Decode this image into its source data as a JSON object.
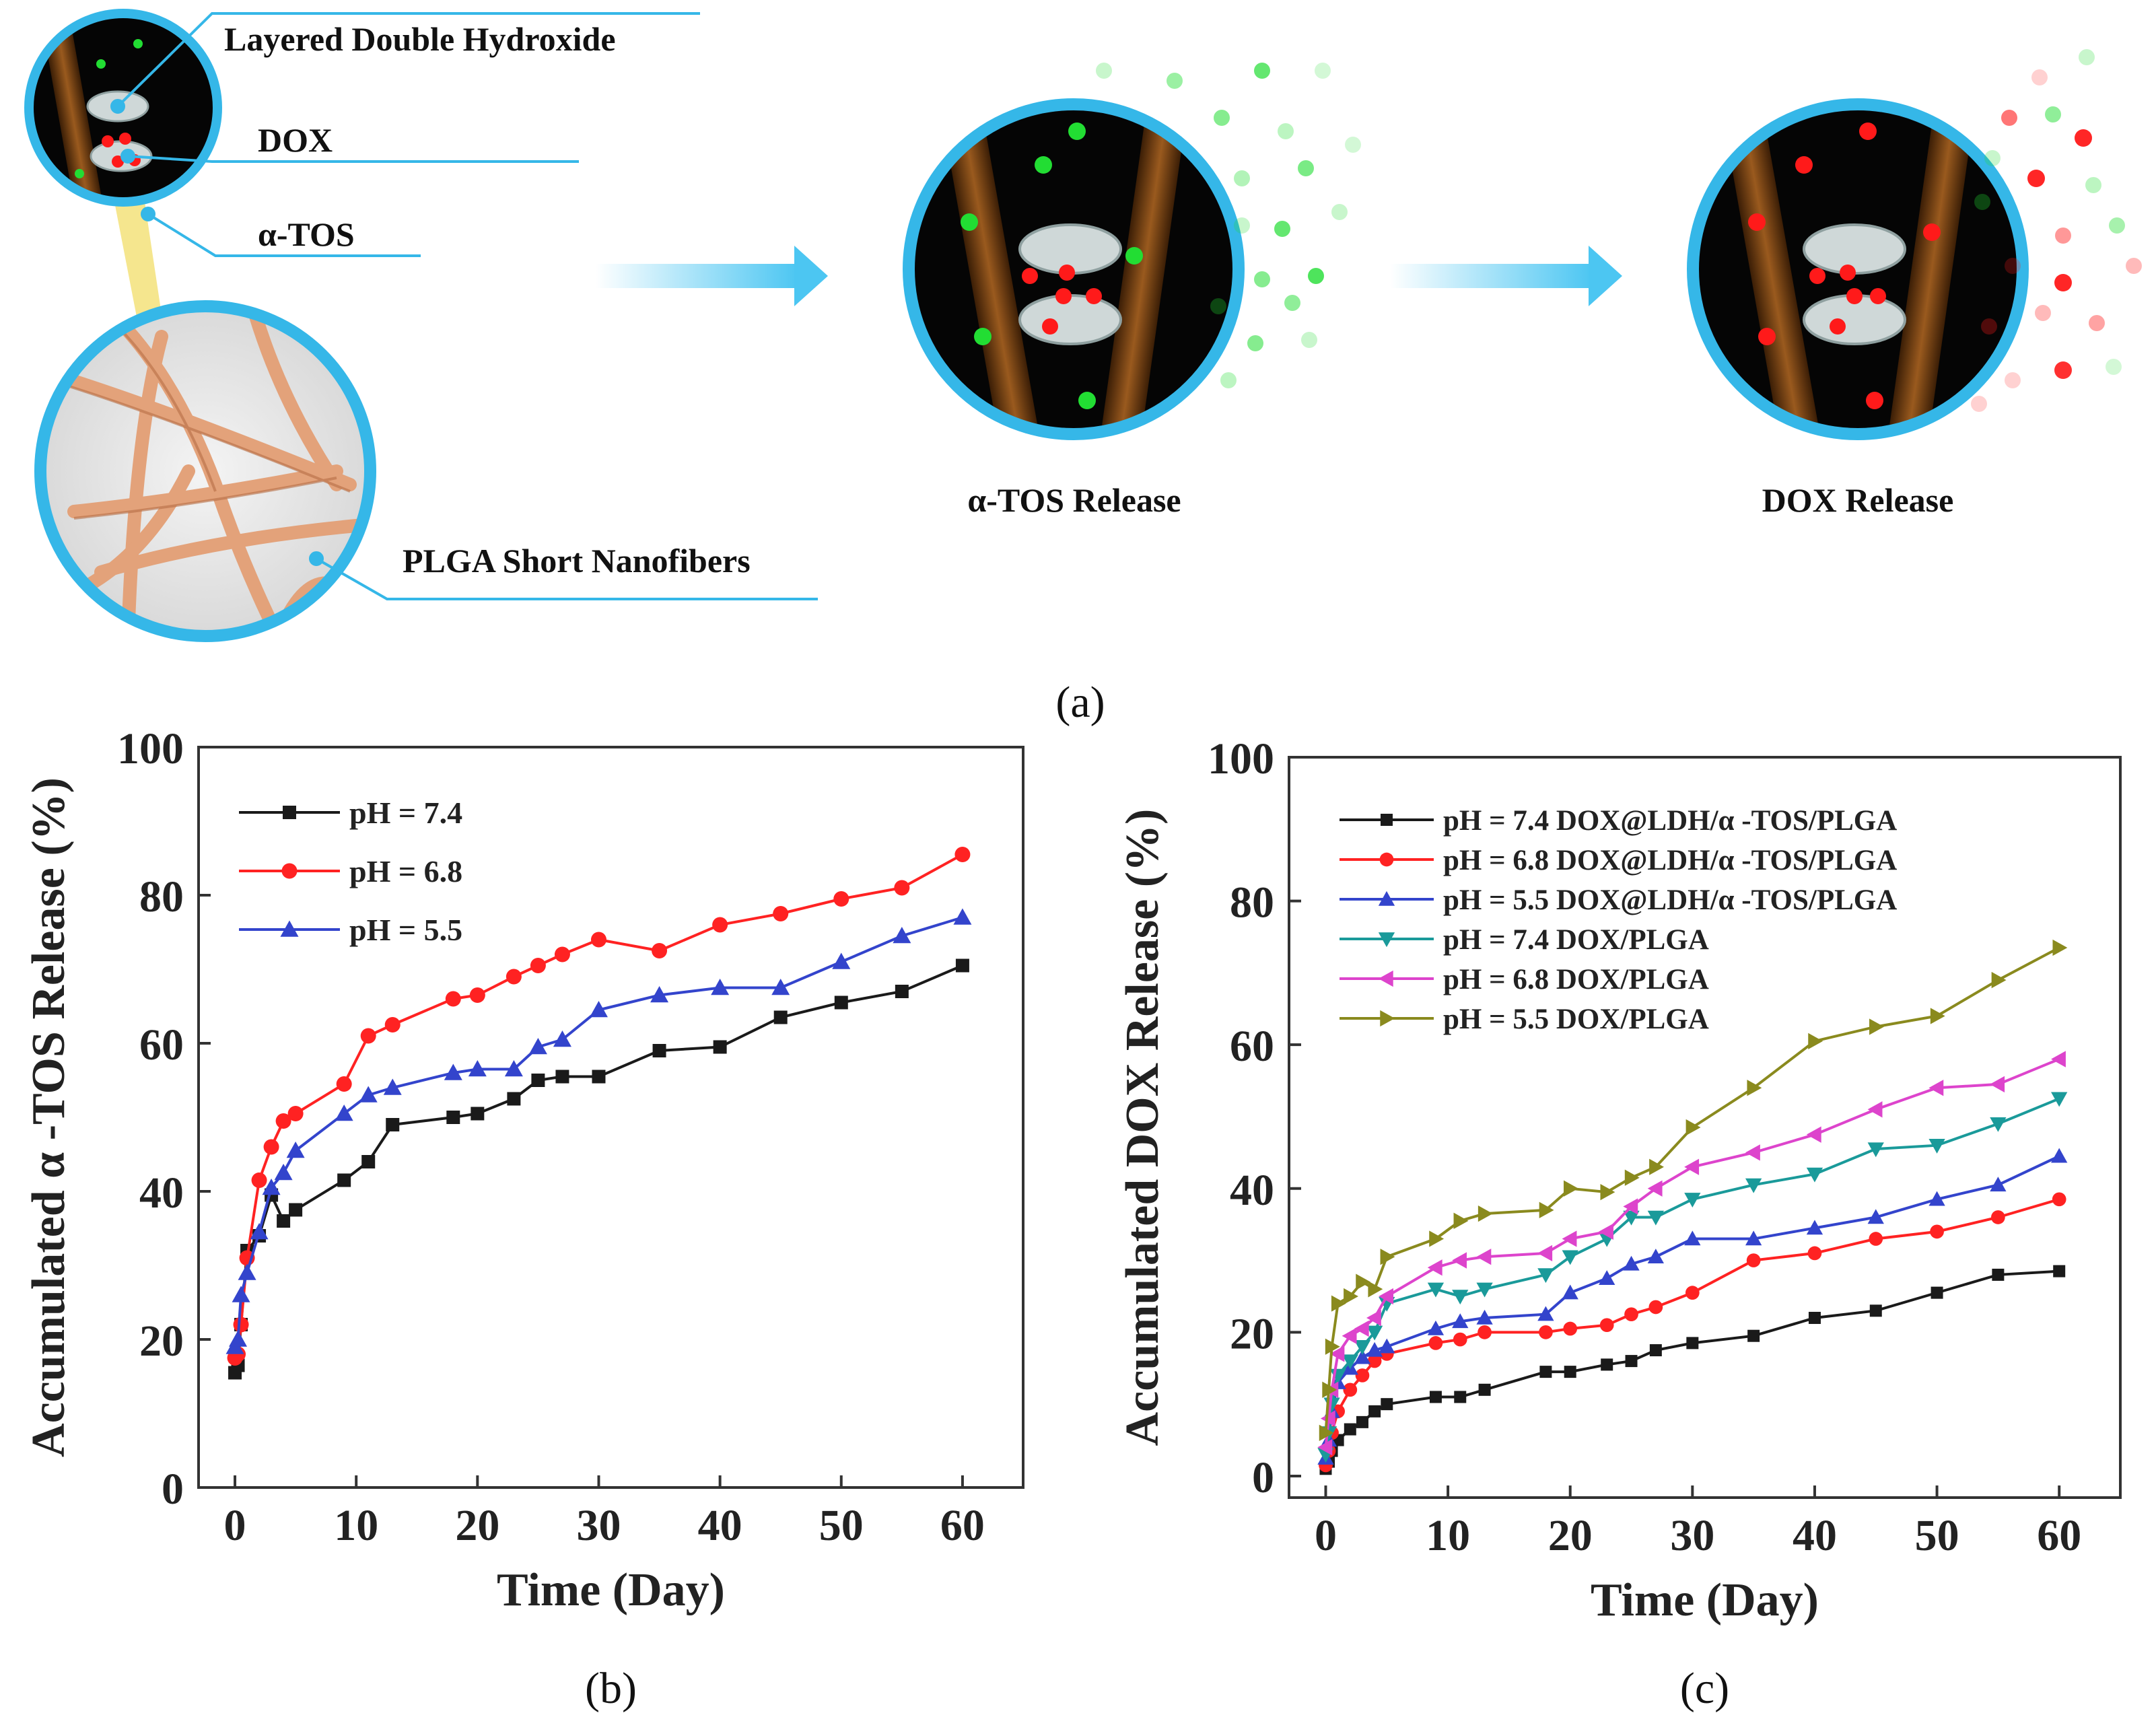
{
  "schematic": {
    "panel_label": "(a)",
    "labels": {
      "ldh": "Layered Double Hydroxide",
      "dox": "DOX",
      "tos": "α-TOS",
      "plga": "PLGA Short Nanofibers",
      "tos_release": "α-TOS Release",
      "dox_release": "DOX Release"
    },
    "colors": {
      "ring": "#35b7e8",
      "arrow": "#4cc6f2",
      "fiber": "#e3a27a",
      "rod": "#8a4a14",
      "green_dot": "#22dd33",
      "red_dot": "#ff1a1a",
      "disk": "#cfd8d8"
    }
  },
  "chart_data": [
    {
      "type": "line",
      "panel_label": "(b)",
      "title": "",
      "xlabel": "Time (Day)",
      "ylabel": "Accumulated α -TOS Release (%)",
      "xlim": [
        -3,
        65
      ],
      "ylim": [
        0,
        100
      ],
      "xticks": [
        0,
        10,
        20,
        30,
        40,
        50,
        60
      ],
      "yticks": [
        0,
        20,
        40,
        60,
        80,
        100
      ],
      "legend_position": "top-left",
      "series": [
        {
          "name": "pH = 7.4",
          "color": "#1a1a1a",
          "marker": "square",
          "x": [
            0,
            0.25,
            0.5,
            1,
            2,
            3,
            4,
            5,
            9,
            11,
            13,
            18,
            20,
            23,
            25,
            27,
            30,
            35,
            40,
            45,
            50,
            55,
            60
          ],
          "y": [
            15.5,
            16.5,
            22,
            32,
            34,
            39.5,
            36,
            37.5,
            41.5,
            44,
            49,
            50,
            50.5,
            52.5,
            55,
            55.5,
            55.5,
            59,
            59.5,
            63.5,
            65.5,
            67,
            70.5
          ]
        },
        {
          "name": "pH = 6.8",
          "color": "#ff2222",
          "marker": "circle",
          "x": [
            0,
            0.25,
            0.5,
            1,
            2,
            3,
            4,
            5,
            9,
            11,
            13,
            18,
            20,
            23,
            25,
            27,
            30,
            35,
            40,
            45,
            50,
            55,
            60
          ],
          "y": [
            17.5,
            18,
            22,
            31,
            41.5,
            46,
            49.5,
            50.5,
            54.5,
            61,
            62.5,
            66,
            66.5,
            69,
            70.5,
            72,
            74,
            72.5,
            76,
            77.5,
            79.5,
            81,
            85.5
          ]
        },
        {
          "name": "pH = 5.5",
          "color": "#3344cc",
          "marker": "triangle-up",
          "x": [
            0,
            0.25,
            0.5,
            1,
            2,
            3,
            4,
            5,
            9,
            11,
            13,
            18,
            20,
            23,
            25,
            27,
            30,
            35,
            40,
            45,
            50,
            55,
            60
          ],
          "y": [
            19,
            20,
            26,
            29,
            34.5,
            40.5,
            42.5,
            45.5,
            50.5,
            53,
            54,
            56,
            56.5,
            56.5,
            59.5,
            60.5,
            64.5,
            66.5,
            67.5,
            67.5,
            71,
            74.5,
            77
          ]
        }
      ]
    },
    {
      "type": "line",
      "panel_label": "(c)",
      "title": "",
      "xlabel": "Time (Day)",
      "ylabel": "Accumulated DOX Release (%)",
      "xlim": [
        -3,
        65
      ],
      "ylim": [
        -3,
        100
      ],
      "xticks": [
        0,
        10,
        20,
        30,
        40,
        50,
        60
      ],
      "yticks": [
        0,
        20,
        40,
        60,
        80,
        100
      ],
      "legend_position": "top-left",
      "series": [
        {
          "name": "pH = 7.4 DOX@LDH/α -TOS/PLGA",
          "color": "#1a1a1a",
          "marker": "square",
          "x": [
            0,
            0.25,
            0.5,
            1,
            2,
            3,
            4,
            5,
            9,
            11,
            13,
            18,
            20,
            23,
            25,
            27,
            30,
            35,
            40,
            45,
            50,
            55,
            60
          ],
          "y": [
            1,
            2,
            3.5,
            5,
            6.5,
            7.5,
            9,
            10,
            11,
            11,
            12,
            14.5,
            14.5,
            15.5,
            16,
            17.5,
            18.5,
            19.5,
            22,
            23,
            25.5,
            28,
            28.5
          ]
        },
        {
          "name": "pH = 6.8 DOX@LDH/α -TOS/PLGA",
          "color": "#ff2222",
          "marker": "circle",
          "x": [
            0,
            0.25,
            0.5,
            1,
            2,
            3,
            4,
            5,
            9,
            11,
            13,
            18,
            20,
            23,
            25,
            27,
            30,
            35,
            40,
            45,
            50,
            55,
            60
          ],
          "y": [
            1.5,
            3.5,
            6,
            9,
            12,
            14,
            16,
            17,
            18.5,
            19,
            20,
            20,
            20.5,
            21,
            22.5,
            23.5,
            25.5,
            30,
            31,
            33,
            34,
            36,
            38.5
          ]
        },
        {
          "name": "pH = 5.5 DOX@LDH/α -TOS/PLGA",
          "color": "#3344cc",
          "marker": "triangle-up",
          "x": [
            0,
            0.25,
            0.5,
            1,
            2,
            3,
            4,
            5,
            9,
            11,
            13,
            18,
            20,
            23,
            25,
            27,
            30,
            35,
            40,
            45,
            50,
            55,
            60
          ],
          "y": [
            2.5,
            5,
            9,
            13,
            15,
            16.5,
            17.5,
            18,
            20.5,
            21.5,
            22,
            22.5,
            25.5,
            27.5,
            29.5,
            30.5,
            33,
            33,
            34.5,
            36,
            38.5,
            40.5,
            44.5
          ]
        },
        {
          "name": "pH = 7.4 DOX/PLGA",
          "color": "#1a9a9a",
          "marker": "triangle-down",
          "x": [
            0,
            0.25,
            0.5,
            1,
            2,
            3,
            4,
            5,
            9,
            11,
            13,
            18,
            20,
            23,
            25,
            27,
            30,
            35,
            40,
            45,
            50,
            55,
            60
          ],
          "y": [
            3,
            6,
            10,
            14,
            16,
            18,
            20,
            24,
            26,
            25,
            26,
            28,
            30.5,
            33,
            36,
            36,
            38.5,
            40.5,
            42,
            45.5,
            46,
            49,
            52.5
          ]
        },
        {
          "name": "pH = 6.8 DOX/PLGA",
          "color": "#dd44cc",
          "marker": "triangle-left",
          "x": [
            0,
            0.25,
            0.5,
            1,
            2,
            3,
            4,
            5,
            9,
            11,
            13,
            18,
            20,
            23,
            25,
            27,
            30,
            35,
            40,
            45,
            50,
            55,
            60
          ],
          "y": [
            4,
            8,
            12,
            17,
            19.5,
            20.5,
            22,
            25,
            29,
            30,
            30.5,
            31,
            33,
            34,
            37.5,
            40,
            43,
            45,
            47.5,
            51,
            54,
            54.5,
            58
          ]
        },
        {
          "name": "pH = 5.5 DOX/PLGA",
          "color": "#8a8a1e",
          "marker": "triangle-right",
          "x": [
            0,
            0.25,
            0.5,
            1,
            2,
            3,
            4,
            5,
            9,
            11,
            13,
            18,
            20,
            23,
            25,
            27,
            30,
            35,
            40,
            45,
            50,
            55,
            60
          ],
          "y": [
            6,
            12,
            18,
            24,
            25,
            27,
            26,
            30.5,
            33,
            35.5,
            36.5,
            37,
            40,
            39.5,
            41.5,
            43,
            48.5,
            54,
            60.5,
            62.5,
            64,
            69,
            73.5
          ]
        }
      ]
    }
  ]
}
